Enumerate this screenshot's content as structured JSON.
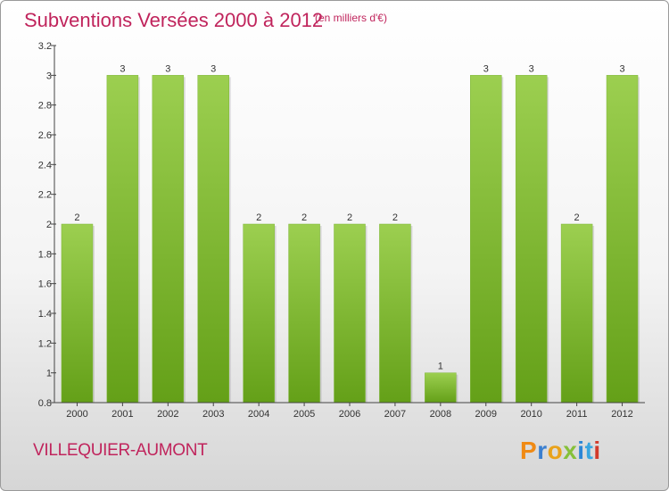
{
  "header": {
    "title": "Subventions Versées 2000 à 2012",
    "subtitle": "(en milliers d'€)"
  },
  "footer": {
    "commune": "VILLEQUIER-AUMONT",
    "logo": "Proxiti"
  },
  "colors": {
    "title": "#c0245c",
    "bar_light": "#9ccf50",
    "bar_dark": "#64a018",
    "logo": [
      "#f08a14",
      "#3a7fd0",
      "#e9a21a",
      "#86c03a",
      "#2c86d6",
      "#3aa6e0",
      "#d23a2a"
    ]
  },
  "chart_data": {
    "type": "bar",
    "categories": [
      "2000",
      "2001",
      "2002",
      "2003",
      "2004",
      "2005",
      "2006",
      "2007",
      "2008",
      "2009",
      "2010",
      "2011",
      "2012"
    ],
    "values": [
      2,
      3,
      3,
      3,
      2,
      2,
      2,
      2,
      1,
      3,
      3,
      2,
      3
    ],
    "title": "Subventions Versées 2000 à 2012",
    "ylim": [
      0.8,
      3.2
    ],
    "yticks": [
      0.8,
      1,
      1.2,
      1.4,
      1.6,
      1.8,
      2,
      2.2,
      2.4,
      2.6,
      2.8,
      3,
      3.2
    ],
    "ytick_labels": [
      "0.8",
      "1",
      "1.2",
      "1.4",
      "1.6",
      "1.8",
      "2",
      "2.2",
      "2.4",
      "2.6",
      "2.8",
      "3",
      "3.2"
    ],
    "grid": false,
    "data_labels": true
  }
}
